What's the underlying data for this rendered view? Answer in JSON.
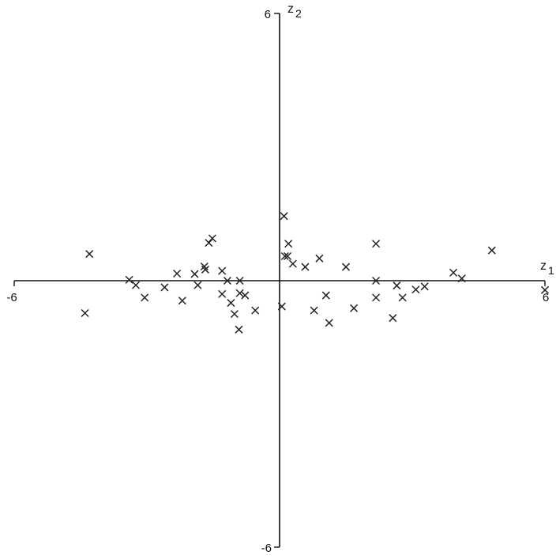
{
  "chart_data": {
    "type": "scatter",
    "marker": "x",
    "xlim": [
      -6,
      6
    ],
    "ylim": [
      -6,
      6
    ],
    "grid": false,
    "x_axis": {
      "name": "z",
      "subscript": "1",
      "min_label": "-6",
      "max_label": "6"
    },
    "y_axis": {
      "name": "z",
      "subscript": "2",
      "min_label": "-6",
      "max_label": "6"
    },
    "points": [
      {
        "x": -4.3,
        "y": 0.6
      },
      {
        "x": -4.4,
        "y": -0.73
      },
      {
        "x": -3.4,
        "y": 0.02
      },
      {
        "x": -3.25,
        "y": -0.1
      },
      {
        "x": -3.05,
        "y": -0.38
      },
      {
        "x": -2.6,
        "y": -0.15
      },
      {
        "x": -2.32,
        "y": 0.16
      },
      {
        "x": -2.2,
        "y": -0.45
      },
      {
        "x": -1.92,
        "y": 0.15
      },
      {
        "x": -1.85,
        "y": -0.1
      },
      {
        "x": -1.7,
        "y": 0.32
      },
      {
        "x": -1.68,
        "y": 0.25
      },
      {
        "x": -1.6,
        "y": 0.85
      },
      {
        "x": -1.52,
        "y": 0.95
      },
      {
        "x": -1.3,
        "y": 0.22
      },
      {
        "x": -1.3,
        "y": -0.3
      },
      {
        "x": -1.18,
        "y": 0.0
      },
      {
        "x": -1.1,
        "y": -0.5
      },
      {
        "x": -1.02,
        "y": -0.75
      },
      {
        "x": -0.92,
        "y": -1.1
      },
      {
        "x": -0.9,
        "y": -0.28
      },
      {
        "x": -0.9,
        "y": 0.0
      },
      {
        "x": -0.78,
        "y": -0.33
      },
      {
        "x": -0.55,
        "y": -0.67
      },
      {
        "x": 0.05,
        "y": -0.58
      },
      {
        "x": 0.1,
        "y": 1.45
      },
      {
        "x": 0.12,
        "y": 0.55
      },
      {
        "x": 0.18,
        "y": 0.55
      },
      {
        "x": 0.2,
        "y": 0.83
      },
      {
        "x": 0.3,
        "y": 0.38
      },
      {
        "x": 0.58,
        "y": 0.31
      },
      {
        "x": 0.78,
        "y": -0.67
      },
      {
        "x": 0.9,
        "y": 0.5
      },
      {
        "x": 1.05,
        "y": -0.33
      },
      {
        "x": 1.12,
        "y": -0.95
      },
      {
        "x": 1.5,
        "y": 0.31
      },
      {
        "x": 1.68,
        "y": -0.62
      },
      {
        "x": 2.18,
        "y": 0.83
      },
      {
        "x": 2.18,
        "y": 0.0
      },
      {
        "x": 2.18,
        "y": -0.38
      },
      {
        "x": 2.56,
        "y": -0.84
      },
      {
        "x": 2.65,
        "y": -0.11
      },
      {
        "x": 2.78,
        "y": -0.38
      },
      {
        "x": 3.08,
        "y": -0.2
      },
      {
        "x": 3.28,
        "y": -0.13
      },
      {
        "x": 3.93,
        "y": 0.18
      },
      {
        "x": 4.12,
        "y": 0.05
      },
      {
        "x": 4.8,
        "y": 0.68
      },
      {
        "x": 6.0,
        "y": -0.21
      }
    ]
  }
}
